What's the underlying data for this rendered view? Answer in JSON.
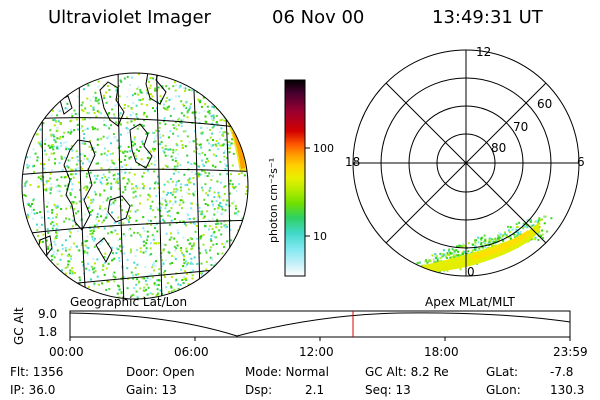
{
  "header": {
    "instrument": "Ultraviolet Imager",
    "date": "06 Nov 00",
    "time": "13:49:31 UT"
  },
  "colorbar": {
    "unit_label": "photon cm⁻²s⁻¹",
    "ticks": [
      "100",
      "10"
    ],
    "colors": [
      "#000000",
      "#4a0030",
      "#9a0030",
      "#d20000",
      "#ff5a00",
      "#ff9a00",
      "#ffd200",
      "#e8f000",
      "#b8ec00",
      "#70e000",
      "#30d060",
      "#40d8c8",
      "#80e8f0",
      "#c8f0f8",
      "#ffffff"
    ]
  },
  "geo_panel": {
    "caption": "Geographic Lat/Lon",
    "accent": "#2ed200"
  },
  "polar_panel": {
    "caption": "Apex MLat/MLT",
    "hour_labels": {
      "top": "12",
      "left": "18",
      "right": "6",
      "bottom": "0"
    },
    "lat_labels": [
      "60",
      "70",
      "80"
    ]
  },
  "orbit_plot": {
    "ylabel": "GC Alt",
    "y_ticks": [
      "9.0",
      "1.8"
    ],
    "x_ticks": [
      "00:00",
      "06:00",
      "12:00",
      "18:00",
      "23:59"
    ],
    "current_marker_color": "#e00000"
  },
  "footer": {
    "flt": "Flt: 1356",
    "ip": "IP: 36.0",
    "door": "Door: Open",
    "gain": "Gain: 13",
    "mode": "Mode: Normal",
    "dsp_label": "Dsp:",
    "dsp_value": "2.1",
    "gc_alt": "GC Alt: 8.2 Re",
    "seq": "Seq: 13",
    "glat_label": "GLat:",
    "glat_value": "-7.8",
    "glon_label": "GLon:",
    "glon_value": "130.3"
  }
}
